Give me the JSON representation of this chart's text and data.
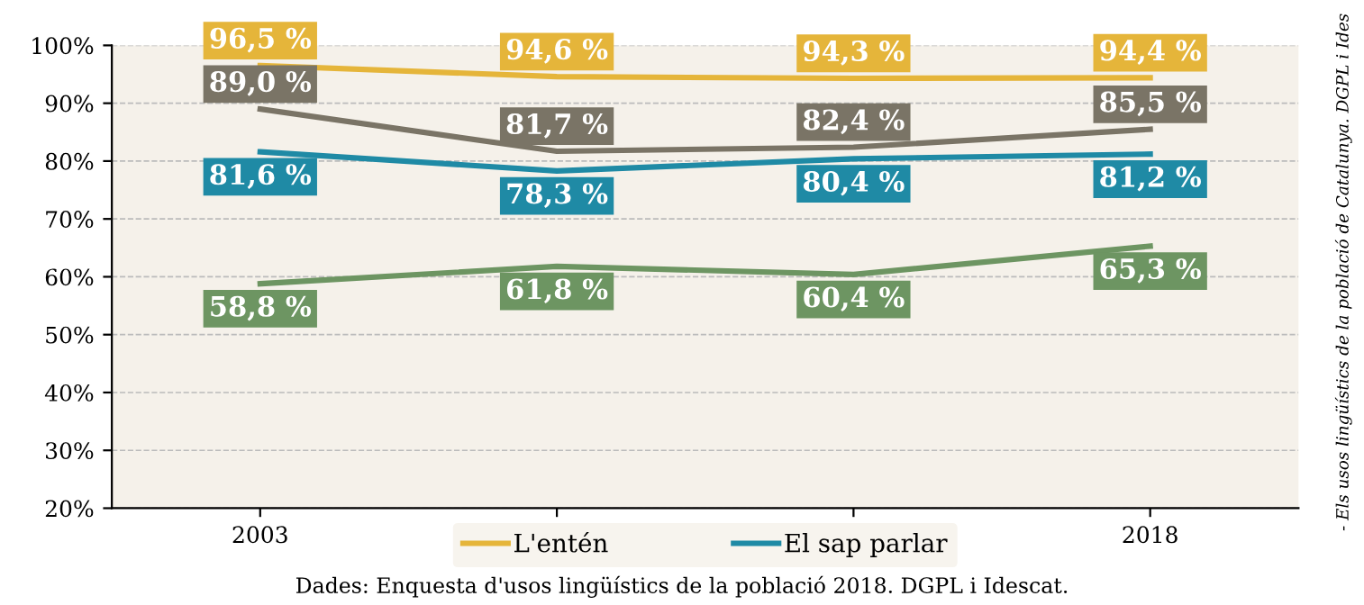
{
  "chart_data": {
    "type": "line",
    "categories": [
      "2003",
      null,
      null,
      "2018"
    ],
    "series": [
      {
        "name": "L'entén",
        "color": "#e5b53a",
        "values": [
          96.5,
          94.6,
          94.3,
          94.4
        ],
        "value_labels": [
          "96,5 %",
          "94,6 %",
          "94,3 %",
          "94,4 %"
        ]
      },
      {
        "color": "#7a7466",
        "values": [
          89.0,
          81.7,
          82.4,
          85.5
        ],
        "value_labels": [
          "89,0 %",
          "81,7 %",
          "82,4 %",
          "85,5 %"
        ]
      },
      {
        "name": "El sap parlar",
        "color": "#1f8aa5",
        "values": [
          81.6,
          78.3,
          80.4,
          81.2
        ],
        "value_labels": [
          "81,6 %",
          "78,3 %",
          "80,4 %",
          "81,2 %"
        ]
      },
      {
        "color": "#6d9562",
        "values": [
          58.8,
          61.8,
          60.4,
          65.3
        ],
        "value_labels": [
          "58,8 %",
          "61,8 %",
          "60,4 %",
          "65,3 %"
        ]
      }
    ],
    "ylim": [
      20,
      100
    ],
    "yticks": [
      {
        "value": 20,
        "label": "20%"
      },
      {
        "value": 30,
        "label": "30%"
      },
      {
        "value": 40,
        "label": "40%"
      },
      {
        "value": 50,
        "label": "50%"
      },
      {
        "value": 60,
        "label": "60%"
      },
      {
        "value": 70,
        "label": "70%"
      },
      {
        "value": 80,
        "label": "80%"
      },
      {
        "value": 90,
        "label": "90%"
      },
      {
        "value": 100,
        "label": "100%"
      }
    ],
    "grid": "y",
    "legend": "bottom",
    "marker": "none",
    "line_style": "solid",
    "annotations": [
      "Dades: Enquesta d'usos lingüístics de la població 2018. DGPL i Idescat.",
      "- Els usos lingüístics de la població de Catalunya. DGPL i Ides"
    ]
  }
}
